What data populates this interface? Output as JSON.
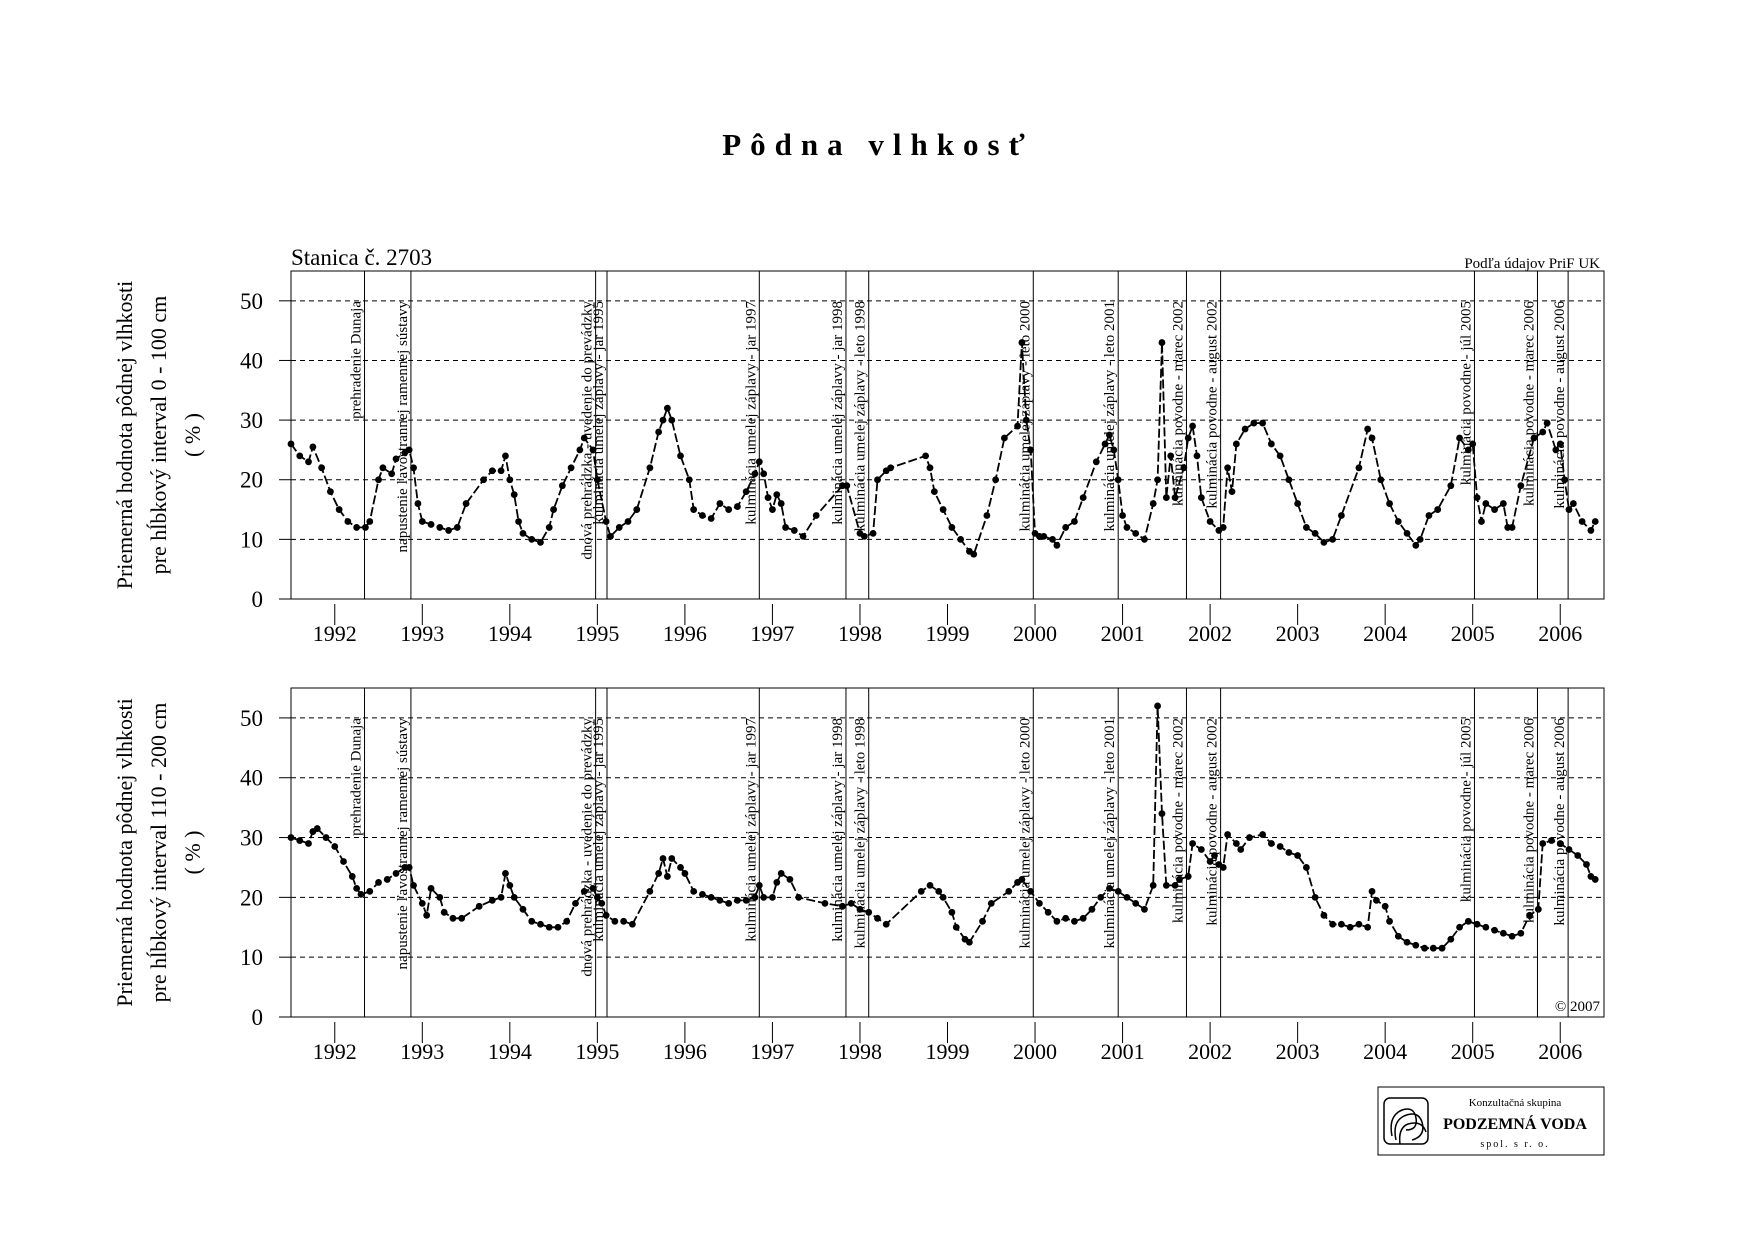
{
  "title": "Pôdna vlhkosť",
  "logo": {
    "line1": "Konzultačná skupina",
    "line2": "PODZEMNÁ VODA",
    "line3": "spol. s r. o."
  },
  "chart_data": [
    {
      "type": "line",
      "color": "#000000",
      "note_left": "Stanica č. 2703",
      "note_right": "Podľa údajov PriF UK",
      "ylabel": [
        "Priemerná hodnota pôdnej vlhkosti",
        "pre hĺbkový interval 0 - 100 cm",
        "( % )"
      ],
      "xlim": [
        1992,
        2007
      ],
      "ylim": [
        0,
        55
      ],
      "yticks": [
        0,
        10,
        20,
        30,
        40,
        50
      ],
      "grid": true,
      "xticks": [
        {
          "value": 1992.5,
          "label": "1992"
        },
        {
          "value": 1993.5,
          "label": "1993"
        },
        {
          "value": 1994.5,
          "label": "1994"
        },
        {
          "value": 1995.5,
          "label": "1995"
        },
        {
          "value": 1996.5,
          "label": "1996"
        },
        {
          "value": 1997.5,
          "label": "1997"
        },
        {
          "value": 1998.5,
          "label": "1998"
        },
        {
          "value": 1999.5,
          "label": "1999"
        },
        {
          "value": 2000.5,
          "label": "2000"
        },
        {
          "value": 2001.5,
          "label": "2001"
        },
        {
          "value": 2002.5,
          "label": "2002"
        },
        {
          "value": 2003.5,
          "label": "2003"
        },
        {
          "value": 2004.5,
          "label": "2004"
        },
        {
          "value": 2005.5,
          "label": "2005"
        },
        {
          "value": 2006.5,
          "label": "2006"
        }
      ],
      "events": [
        {
          "x": 1992.84,
          "label": "prehradenie Dunaja"
        },
        {
          "x": 1993.37,
          "label": "napustenie ľavostrannej ramennej sústavy"
        },
        {
          "x": 1995.48,
          "label": "dnová prehrádzka - uvedenie do prevádzky"
        },
        {
          "x": 1995.61,
          "label": "kulminácia umelej záplavy - jar 1995"
        },
        {
          "x": 1997.35,
          "label": "kulminácia umelej záplavy - jar 1997"
        },
        {
          "x": 1998.34,
          "label": "kulminácia umelej záplavy - jar 1998"
        },
        {
          "x": 1998.6,
          "label": "kulminácia umelej záplavy - leto 1998"
        },
        {
          "x": 2000.48,
          "label": "kulminácia umelej záplavy - leto 2000"
        },
        {
          "x": 2001.45,
          "label": "kulminácia umelej záplavy - leto 2001"
        },
        {
          "x": 2002.23,
          "label": "kulminácia povodne - marec 2002"
        },
        {
          "x": 2002.62,
          "label": "kulminácia povodne - august 2002"
        },
        {
          "x": 2005.52,
          "label": "kulminácia povodne - júl 2005"
        },
        {
          "x": 2006.24,
          "label": "kulminácia povodne - marec 2006"
        },
        {
          "x": 2006.59,
          "label": "kulminácia povodne - august 2006"
        }
      ],
      "x": [
        1992.0,
        1992.1,
        1992.2,
        1992.25,
        1992.35,
        1992.45,
        1992.55,
        1992.65,
        1992.75,
        1992.85,
        1992.9,
        1993.0,
        1993.05,
        1993.15,
        1993.2,
        1993.3,
        1993.35,
        1993.4,
        1993.45,
        1993.5,
        1993.6,
        1993.7,
        1993.8,
        1993.9,
        1994.0,
        1994.2,
        1994.3,
        1994.4,
        1994.45,
        1994.5,
        1994.55,
        1994.6,
        1994.65,
        1994.75,
        1994.85,
        1994.95,
        1995.0,
        1995.1,
        1995.2,
        1995.3,
        1995.35,
        1995.45,
        1995.5,
        1995.6,
        1995.65,
        1995.75,
        1995.85,
        1995.95,
        1996.1,
        1996.2,
        1996.25,
        1996.3,
        1996.35,
        1996.45,
        1996.55,
        1996.6,
        1996.7,
        1996.8,
        1996.9,
        1997.0,
        1997.1,
        1997.2,
        1997.3,
        1997.35,
        1997.4,
        1997.45,
        1997.5,
        1997.55,
        1997.6,
        1997.65,
        1997.75,
        1997.85,
        1998.0,
        1998.3,
        1998.35,
        1998.5,
        1998.55,
        1998.65,
        1998.7,
        1998.8,
        1998.85,
        1999.25,
        1999.3,
        1999.35,
        1999.45,
        1999.55,
        1999.65,
        1999.75,
        1999.8,
        1999.95,
        2000.05,
        2000.15,
        2000.3,
        2000.35,
        2000.4,
        2000.45,
        2000.5,
        2000.55,
        2000.6,
        2000.7,
        2000.75,
        2000.85,
        2000.95,
        2001.05,
        2001.2,
        2001.3,
        2001.35,
        2001.4,
        2001.45,
        2001.5,
        2001.55,
        2001.65,
        2001.75,
        2001.85,
        2001.9,
        2001.95,
        2002.0,
        2002.05,
        2002.1,
        2002.2,
        2002.25,
        2002.3,
        2002.35,
        2002.4,
        2002.5,
        2002.6,
        2002.65,
        2002.7,
        2002.75,
        2002.8,
        2002.9,
        2003.0,
        2003.1,
        2003.2,
        2003.3,
        2003.4,
        2003.5,
        2003.6,
        2003.7,
        2003.8,
        2003.9,
        2004.0,
        2004.2,
        2004.3,
        2004.35,
        2004.45,
        2004.55,
        2004.65,
        2004.75,
        2004.85,
        2004.9,
        2005.0,
        2005.1,
        2005.25,
        2005.35,
        2005.45,
        2005.5,
        2005.55,
        2005.6,
        2005.65,
        2005.75,
        2005.85,
        2005.9,
        2005.95,
        2006.05,
        2006.2,
        2006.3,
        2006.35,
        2006.45,
        2006.5,
        2006.55,
        2006.6,
        2006.65,
        2006.75,
        2006.85,
        2006.9
      ],
      "values": [
        26,
        24,
        23,
        25.5,
        22,
        18,
        15,
        13,
        12,
        12,
        13,
        20,
        22,
        21,
        23.5,
        24.5,
        25,
        22,
        16,
        13,
        12.5,
        12,
        11.5,
        12,
        16,
        20,
        21.5,
        21.5,
        24,
        20,
        17.5,
        13,
        11,
        10,
        9.5,
        12,
        15,
        19,
        22,
        25,
        27,
        25,
        20,
        13,
        10.5,
        12,
        13,
        15,
        22,
        28,
        30,
        32,
        30,
        24,
        20,
        15,
        14,
        13.5,
        16,
        15,
        15.5,
        18,
        21,
        23,
        21,
        17,
        15,
        17.5,
        16,
        12,
        11.5,
        10.5,
        14,
        19,
        19,
        11,
        10.5,
        11,
        20,
        21.5,
        22,
        24,
        22,
        18,
        15,
        12,
        10,
        8,
        7.5,
        14,
        20,
        27,
        29,
        43,
        30,
        25,
        11,
        10.5,
        10.5,
        10,
        9,
        12,
        13,
        17,
        23,
        26,
        27.5,
        25,
        20,
        14,
        12,
        11,
        10,
        16,
        20,
        43,
        17,
        24,
        17,
        22,
        27,
        29,
        24,
        17,
        13,
        11.5,
        12,
        22,
        18,
        26,
        28.5,
        29.5,
        29.5,
        26,
        24,
        20,
        16,
        12,
        11,
        9.5,
        10,
        14,
        22,
        28.5,
        27,
        20,
        16,
        13,
        11,
        9,
        10,
        14,
        15,
        19,
        27,
        25,
        26,
        17,
        13,
        16,
        15,
        16,
        12,
        12,
        19,
        27,
        28,
        29.5,
        25,
        26,
        20,
        15,
        16,
        13,
        11.5,
        13
      ]
    },
    {
      "type": "line",
      "color": "#000000",
      "note_right": "© 2007",
      "ylabel": [
        "Priemerná hodnota pôdnej vlhkosti",
        "pre hĺbkový interval 110 - 200 cm",
        "( % )"
      ],
      "xlim": [
        1992,
        2007
      ],
      "ylim": [
        0,
        55
      ],
      "yticks": [
        0,
        10,
        20,
        30,
        40,
        50
      ],
      "grid": true,
      "xticks": [
        {
          "value": 1992.5,
          "label": "1992"
        },
        {
          "value": 1993.5,
          "label": "1993"
        },
        {
          "value": 1994.5,
          "label": "1994"
        },
        {
          "value": 1995.5,
          "label": "1995"
        },
        {
          "value": 1996.5,
          "label": "1996"
        },
        {
          "value": 1997.5,
          "label": "1997"
        },
        {
          "value": 1998.5,
          "label": "1998"
        },
        {
          "value": 1999.5,
          "label": "1999"
        },
        {
          "value": 2000.5,
          "label": "2000"
        },
        {
          "value": 2001.5,
          "label": "2001"
        },
        {
          "value": 2002.5,
          "label": "2002"
        },
        {
          "value": 2003.5,
          "label": "2003"
        },
        {
          "value": 2004.5,
          "label": "2004"
        },
        {
          "value": 2005.5,
          "label": "2005"
        },
        {
          "value": 2006.5,
          "label": "2006"
        }
      ],
      "events": [
        {
          "x": 1992.84,
          "label": "prehradenie Dunaja"
        },
        {
          "x": 1993.37,
          "label": "napustenie ľavostrannej ramennej sústavy"
        },
        {
          "x": 1995.48,
          "label": "dnová prehrádzka - uvedenie do prevádzky"
        },
        {
          "x": 1995.61,
          "label": "kulminácia umelej záplavy - jar 1995"
        },
        {
          "x": 1997.35,
          "label": "kulminácia umelej záplavy - jar 1997"
        },
        {
          "x": 1998.34,
          "label": "kulminácia umelej záplavy - jar 1998"
        },
        {
          "x": 1998.6,
          "label": "kulminácia umelej záplavy - leto 1998"
        },
        {
          "x": 2000.48,
          "label": "kulminácia umelej záplavy - leto 2000"
        },
        {
          "x": 2001.45,
          "label": "kulminácia umelej záplavy - leto 2001"
        },
        {
          "x": 2002.23,
          "label": "kulminácia povodne - marec 2002"
        },
        {
          "x": 2002.62,
          "label": "kulminácia povodne - august 2002"
        },
        {
          "x": 2005.52,
          "label": "kulminácia povodne - júl 2005"
        },
        {
          "x": 2006.24,
          "label": "kulminácia povodne - marec 2006"
        },
        {
          "x": 2006.59,
          "label": "kulminácia povodne - august 2006"
        }
      ],
      "x": [
        1992.0,
        1992.1,
        1992.2,
        1992.25,
        1992.3,
        1992.4,
        1992.5,
        1992.6,
        1992.7,
        1992.75,
        1992.8,
        1992.9,
        1993.0,
        1993.1,
        1993.2,
        1993.3,
        1993.35,
        1993.4,
        1993.5,
        1993.55,
        1993.6,
        1993.7,
        1993.75,
        1993.85,
        1993.95,
        1994.15,
        1994.3,
        1994.4,
        1994.45,
        1994.5,
        1994.55,
        1994.65,
        1994.75,
        1994.85,
        1994.95,
        1995.05,
        1995.15,
        1995.25,
        1995.35,
        1995.45,
        1995.5,
        1995.55,
        1995.6,
        1995.7,
        1995.8,
        1995.9,
        1996.1,
        1996.2,
        1996.25,
        1996.3,
        1996.35,
        1996.45,
        1996.5,
        1996.6,
        1996.7,
        1996.8,
        1996.9,
        1997.0,
        1997.1,
        1997.2,
        1997.3,
        1997.35,
        1997.4,
        1997.5,
        1997.55,
        1997.6,
        1997.7,
        1997.8,
        1998.1,
        1998.3,
        1998.4,
        1998.5,
        1998.6,
        1998.7,
        1998.8,
        1999.2,
        1999.3,
        1999.4,
        1999.45,
        1999.55,
        1999.6,
        1999.7,
        1999.75,
        1999.9,
        2000.0,
        2000.2,
        2000.3,
        2000.35,
        2000.45,
        2000.55,
        2000.65,
        2000.75,
        2000.85,
        2000.95,
        2001.05,
        2001.15,
        2001.25,
        2001.35,
        2001.45,
        2001.55,
        2001.65,
        2001.75,
        2001.85,
        2001.9,
        2001.95,
        2002.0,
        2002.1,
        2002.15,
        2002.25,
        2002.3,
        2002.4,
        2002.5,
        2002.55,
        2002.6,
        2002.65,
        2002.7,
        2002.8,
        2002.85,
        2002.95,
        2003.1,
        2003.2,
        2003.3,
        2003.4,
        2003.5,
        2003.6,
        2003.7,
        2003.8,
        2003.9,
        2004.0,
        2004.1,
        2004.2,
        2004.3,
        2004.35,
        2004.4,
        2004.5,
        2004.55,
        2004.65,
        2004.75,
        2004.85,
        2004.95,
        2005.05,
        2005.15,
        2005.25,
        2005.35,
        2005.45,
        2005.55,
        2005.65,
        2005.75,
        2005.85,
        2005.95,
        2006.05,
        2006.15,
        2006.25,
        2006.3,
        2006.4,
        2006.5,
        2006.6,
        2006.7,
        2006.8,
        2006.85,
        2006.9
      ],
      "values": [
        30,
        29.5,
        29,
        31,
        31.5,
        30,
        28.5,
        26,
        23.5,
        21.5,
        20.5,
        21,
        22.5,
        23,
        24,
        25,
        25,
        22,
        19,
        17,
        21.5,
        20,
        17.5,
        16.5,
        16.5,
        18.5,
        19.5,
        20,
        24,
        22,
        20,
        18,
        16,
        15.5,
        15,
        15,
        16,
        19,
        21,
        21.5,
        20,
        19,
        17,
        16,
        16,
        15.5,
        21,
        24,
        26.5,
        23.5,
        26.5,
        25,
        24,
        21,
        20.5,
        20,
        19.5,
        19,
        19.5,
        19.5,
        20,
        22,
        20,
        20,
        22.5,
        24,
        23,
        20,
        19,
        18.5,
        19,
        18,
        17.5,
        16.5,
        15.5,
        21,
        22,
        21,
        20,
        17.5,
        15,
        13,
        12.5,
        16,
        19,
        21,
        22.5,
        23,
        21,
        19,
        17.5,
        16,
        16.5,
        16,
        16.5,
        18,
        20,
        21.5,
        21,
        20,
        19,
        18,
        22,
        52,
        34,
        22,
        22,
        23,
        23.5,
        29,
        28,
        26,
        27,
        25.5,
        25,
        30.5,
        29,
        28,
        30,
        30.5,
        29,
        28.5,
        27.5,
        27,
        25,
        20,
        17,
        15.5,
        15.5,
        15,
        15.5,
        15,
        21,
        19.5,
        18.5,
        16,
        13.5,
        12.5,
        12,
        11.5,
        11.5,
        11.5,
        13,
        15,
        16,
        15.5,
        15,
        14.5,
        14,
        13.5,
        14,
        17,
        18,
        29,
        29.5,
        29,
        28,
        27,
        25.5,
        23.5,
        23
      ]
    }
  ]
}
